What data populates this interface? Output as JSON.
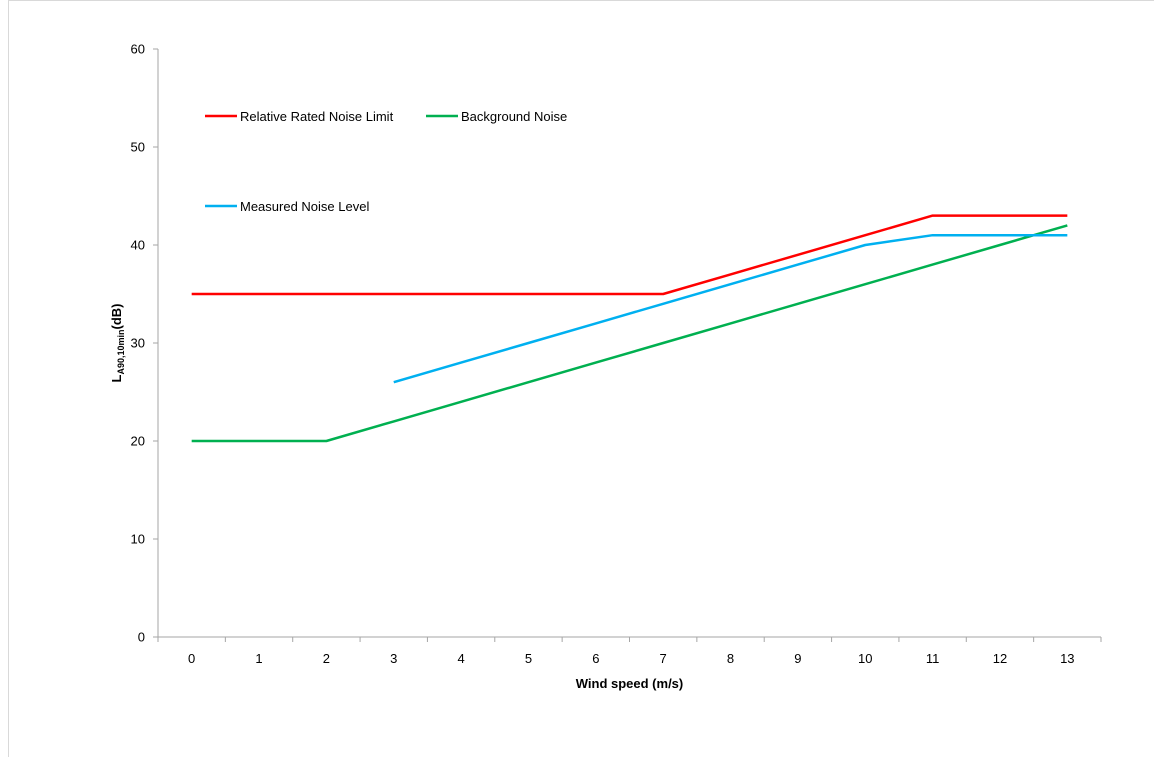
{
  "chart_data": {
    "type": "line",
    "title": "",
    "xlabel": "Wind speed (m/s)",
    "ylabel": {
      "main": "L",
      "subscript": "A90,10min",
      "suffix": "(dB)"
    },
    "categories": [
      "0",
      "1",
      "2",
      "3",
      "4",
      "5",
      "6",
      "7",
      "8",
      "9",
      "10",
      "11",
      "12",
      "13"
    ],
    "ylim": [
      0,
      60
    ],
    "yticks": [
      "0",
      "10",
      "20",
      "30",
      "40",
      "50",
      "60"
    ],
    "grid": false,
    "legend_position": "top-left",
    "series": [
      {
        "name": "Relative Rated Noise Limit",
        "color": "#ff0000",
        "values": [
          35,
          35,
          35,
          35,
          35,
          35,
          35,
          35,
          37,
          39,
          41,
          43,
          43,
          43
        ]
      },
      {
        "name": "Background Noise",
        "color": "#00b050",
        "values": [
          20,
          20,
          20,
          22,
          24,
          26,
          28,
          30,
          32,
          34,
          36,
          38,
          40,
          42
        ]
      },
      {
        "name": "Measured Noise Level",
        "color": "#00b0f0",
        "values": [
          null,
          null,
          null,
          26,
          28,
          30,
          32,
          34,
          36,
          38,
          40,
          41,
          41,
          41
        ]
      }
    ]
  }
}
